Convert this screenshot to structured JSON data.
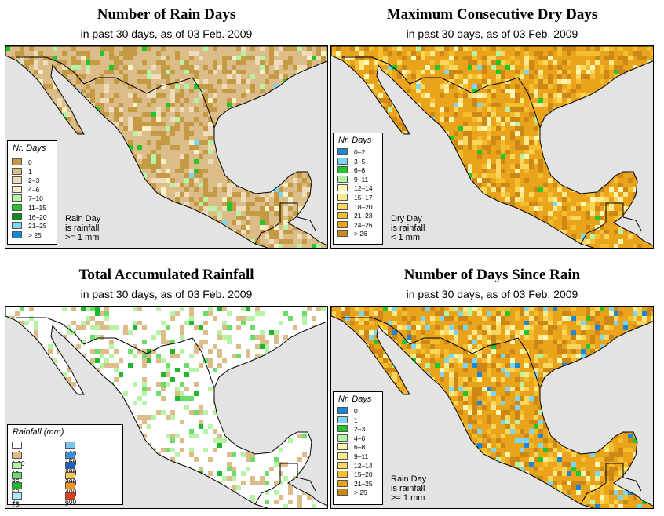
{
  "panels": {
    "rain_days": {
      "title": "Number of Rain Days",
      "subtitle": "in past 30 days, as of  03 Feb. 2009",
      "legend_title": "Nr. Days",
      "legend": [
        {
          "label": "0",
          "color": "#c49a45"
        },
        {
          "label": "1",
          "color": "#dcbd8a"
        },
        {
          "label": "2–3",
          "color": "#eedcbd"
        },
        {
          "label": "4–6",
          "color": "#f7f1c6"
        },
        {
          "label": "7–10",
          "color": "#b6f3a6"
        },
        {
          "label": "11–15",
          "color": "#22c62b"
        },
        {
          "label": "16–20",
          "color": "#0a8a1a"
        },
        {
          "label": "21–25",
          "color": "#7fd6f2"
        },
        {
          "label": "> 25",
          "color": "#1a86d6"
        }
      ],
      "note": [
        "Rain Day",
        "is rainfall",
        ">= 1 mm"
      ]
    },
    "dry_days": {
      "title": "Maximum Consecutive Dry Days",
      "subtitle": "in past 30 days, as of  03 Feb. 2009",
      "legend_title": "Nr. Days",
      "legend": [
        {
          "label": "0–2",
          "color": "#1a86d6"
        },
        {
          "label": "3–5",
          "color": "#7fd6f2"
        },
        {
          "label": "6–8",
          "color": "#22c62b"
        },
        {
          "label": "9–11",
          "color": "#b6f3a6"
        },
        {
          "label": "12–14",
          "color": "#fbf7b2"
        },
        {
          "label": "15–17",
          "color": "#fbe98c"
        },
        {
          "label": "18–20",
          "color": "#fad65c"
        },
        {
          "label": "21–23",
          "color": "#f4be2e"
        },
        {
          "label": "24–26",
          "color": "#e9a41c"
        },
        {
          "label": "> 26",
          "color": "#cc8716"
        }
      ],
      "note": [
        "Dry Day",
        "is rainfall",
        "< 1 mm"
      ]
    },
    "total_rain": {
      "title": "Total Accumulated Rainfall",
      "subtitle": "in past 30 days, as of  03 Feb. 2009",
      "legend_title": "Rainfall (mm)",
      "legend_left": [
        {
          "label": "< 1",
          "color": "#ffffff"
        },
        {
          "label": "1   10",
          "color": "#dcbd8a"
        },
        {
          "label": "10   25",
          "color": "#b6f3a6"
        },
        {
          "label": "25   50",
          "color": "#6ddc6b"
        },
        {
          "label": "50   75",
          "color": "#22b530"
        },
        {
          "label": "75   100",
          "color": "#aee9f7"
        }
      ],
      "legend_right": [
        {
          "label": "100   150",
          "color": "#7cc4ee"
        },
        {
          "label": "150   200",
          "color": "#3a8fe0"
        },
        {
          "label": "200   300",
          "color": "#1b5fc8"
        },
        {
          "label": "300   400",
          "color": "#f7c850"
        },
        {
          "label": "400   600",
          "color": "#f49420"
        },
        {
          "label": "> 600",
          "color": "#ea3a12"
        }
      ]
    },
    "days_since": {
      "title": "Number of Days Since Rain",
      "subtitle": "in past 30 days, as of  03 Feb. 2009",
      "legend_title": "Nr. Days",
      "legend": [
        {
          "label": "0",
          "color": "#1a86d6"
        },
        {
          "label": "1",
          "color": "#7fd6f2"
        },
        {
          "label": "2–3",
          "color": "#22c62b"
        },
        {
          "label": "4–6",
          "color": "#b6f3a6"
        },
        {
          "label": "6–8",
          "color": "#fbf7b2"
        },
        {
          "label": "9–11",
          "color": "#fbe98c"
        },
        {
          "label": "12–14",
          "color": "#fad65c"
        },
        {
          "label": "15–20",
          "color": "#f4be2e"
        },
        {
          "label": "21–25",
          "color": "#e9a41c"
        },
        {
          "label": "> 25",
          "color": "#cc8716"
        }
      ],
      "note": [
        "Rain Day",
        "is rainfall",
        ">= 1 mm"
      ]
    }
  },
  "colors": {
    "ocean": "#e3e3e3",
    "border": "#000000"
  }
}
